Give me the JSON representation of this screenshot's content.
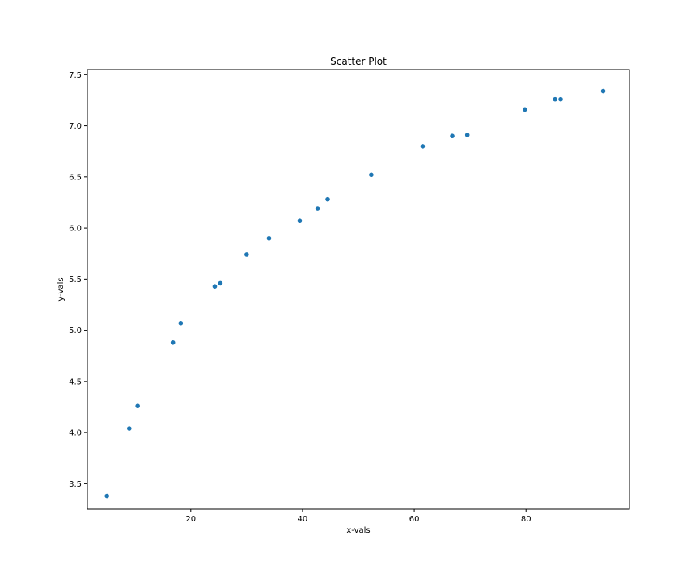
{
  "chart_data": {
    "type": "scatter",
    "title": "Scatter Plot",
    "xlabel": "x-vals",
    "ylabel": "y-vals",
    "xlim": [
      1.5,
      98.5
    ],
    "ylim": [
      3.25,
      7.55
    ],
    "xticks": [
      20,
      40,
      60,
      80
    ],
    "xtick_labels": [
      "20",
      "40",
      "60",
      "80"
    ],
    "yticks": [
      3.5,
      4.0,
      4.5,
      5.0,
      5.5,
      6.0,
      6.5,
      7.0,
      7.5
    ],
    "ytick_labels": [
      "3.5",
      "4.0",
      "4.5",
      "5.0",
      "5.5",
      "6.0",
      "6.5",
      "7.0",
      "7.5"
    ],
    "grid": false,
    "marker_color": "#1f77b4",
    "series": [
      {
        "points": [
          {
            "x": 5.0,
            "y": 3.38
          },
          {
            "x": 9.0,
            "y": 4.04
          },
          {
            "x": 10.5,
            "y": 4.26
          },
          {
            "x": 16.8,
            "y": 4.88
          },
          {
            "x": 18.2,
            "y": 5.07
          },
          {
            "x": 24.3,
            "y": 5.43
          },
          {
            "x": 25.3,
            "y": 5.46
          },
          {
            "x": 30.0,
            "y": 5.74
          },
          {
            "x": 34.0,
            "y": 5.9
          },
          {
            "x": 39.5,
            "y": 6.07
          },
          {
            "x": 42.7,
            "y": 6.19
          },
          {
            "x": 44.5,
            "y": 6.28
          },
          {
            "x": 52.3,
            "y": 6.52
          },
          {
            "x": 61.5,
            "y": 6.8
          },
          {
            "x": 66.8,
            "y": 6.9
          },
          {
            "x": 69.5,
            "y": 6.91
          },
          {
            "x": 79.8,
            "y": 7.16
          },
          {
            "x": 85.2,
            "y": 7.26
          },
          {
            "x": 86.2,
            "y": 7.26
          },
          {
            "x": 93.8,
            "y": 7.34
          }
        ]
      }
    ]
  }
}
